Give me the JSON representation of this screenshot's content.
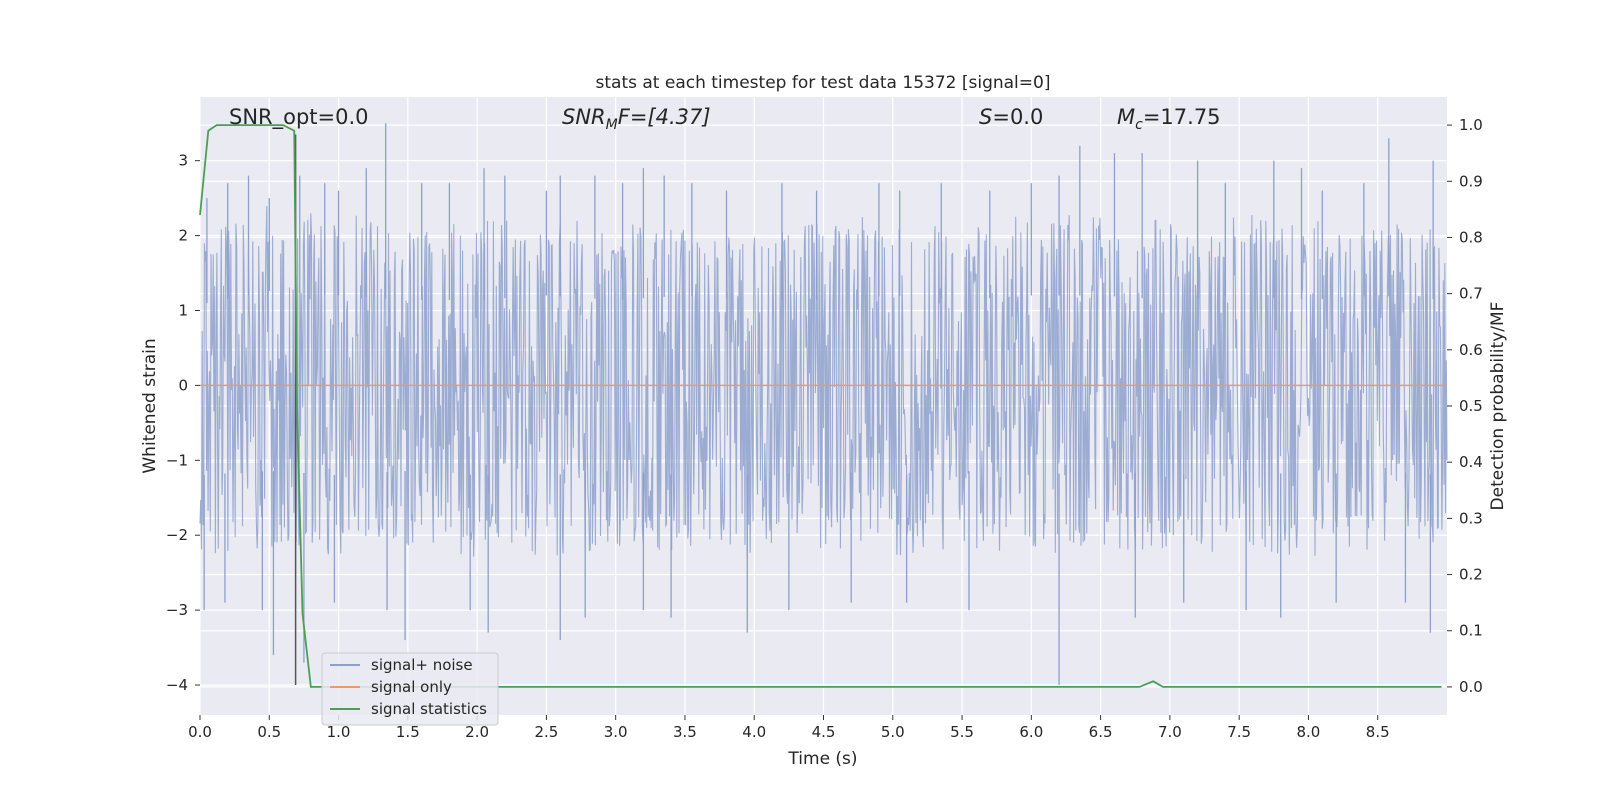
{
  "chart_data": {
    "type": "line",
    "title": "stats at each timestep for test data 15372 [signal=0]",
    "xlabel": "Time (s)",
    "ylabel": "Whitened strain",
    "y2label": "Detection probability/MF",
    "xlim": [
      0.0,
      9.0
    ],
    "ylim": [
      -4.4,
      3.85
    ],
    "y2lim": [
      -0.05,
      1.05
    ],
    "xticks": [
      0.0,
      0.5,
      1.0,
      1.5,
      2.0,
      2.5,
      3.0,
      3.5,
      4.0,
      4.5,
      5.0,
      5.5,
      6.0,
      6.5,
      7.0,
      7.5,
      8.0,
      8.5
    ],
    "yticks": [
      -4,
      -3,
      -2,
      -1,
      0,
      1,
      2,
      3
    ],
    "y2ticks": [
      0.0,
      0.1,
      0.2,
      0.3,
      0.4,
      0.5,
      0.6,
      0.7,
      0.8,
      0.9,
      1.0
    ],
    "grid": true,
    "legend_position": "lower-left",
    "annotations": {
      "snr_opt": "SNR_opt=0.0",
      "snr_mf_main": "SNR",
      "snr_mf_sub": "M",
      "snr_mf_rest": "F=[4.37]",
      "s_main": "S",
      "s_rest": "=0.0",
      "mc_main": "M",
      "mc_sub": "c",
      "mc_rest": "=17.75"
    },
    "vline_x": 0.69,
    "series": [
      {
        "name": "signal+ noise",
        "color": "#8da0cb",
        "envelope": {
          "upper": [
            [
              0.0,
              1.8
            ],
            [
              0.5,
              2.1
            ],
            [
              1.0,
              2.0
            ],
            [
              1.5,
              1.9
            ],
            [
              2.0,
              1.9
            ],
            [
              2.5,
              2.0
            ],
            [
              3.0,
              1.9
            ],
            [
              3.5,
              2.0
            ],
            [
              4.0,
              1.9
            ],
            [
              4.5,
              1.9
            ],
            [
              5.0,
              2.0
            ],
            [
              5.5,
              1.9
            ],
            [
              6.0,
              2.0
            ],
            [
              6.5,
              2.0
            ],
            [
              7.0,
              1.9
            ],
            [
              7.5,
              2.0
            ],
            [
              8.0,
              1.9
            ],
            [
              8.5,
              2.0
            ],
            [
              9.0,
              1.9
            ]
          ],
          "lower": [
            [
              0.0,
              -2.0
            ],
            [
              0.5,
              -1.9
            ],
            [
              1.0,
              -2.0
            ],
            [
              1.5,
              -1.9
            ],
            [
              2.0,
              -2.0
            ],
            [
              2.5,
              -2.0
            ],
            [
              3.0,
              -1.9
            ],
            [
              3.5,
              -2.0
            ],
            [
              4.0,
              -2.0
            ],
            [
              4.5,
              -1.9
            ],
            [
              5.0,
              -2.0
            ],
            [
              5.5,
              -1.9
            ],
            [
              6.0,
              -2.0
            ],
            [
              6.5,
              -1.9
            ],
            [
              7.0,
              -2.0
            ],
            [
              7.5,
              -1.9
            ],
            [
              8.0,
              -2.0
            ],
            [
              8.5,
              -1.9
            ],
            [
              9.0,
              -2.0
            ]
          ],
          "peaks": [
            [
              0.05,
              2.5
            ],
            [
              0.2,
              2.7
            ],
            [
              0.35,
              2.8
            ],
            [
              0.5,
              2.5
            ],
            [
              0.72,
              2.8
            ],
            [
              0.9,
              2.7
            ],
            [
              1.0,
              2.6
            ],
            [
              1.2,
              2.9
            ],
            [
              1.34,
              3.5
            ],
            [
              1.6,
              2.7
            ],
            [
              1.8,
              2.7
            ],
            [
              2.05,
              2.9
            ],
            [
              2.2,
              2.8
            ],
            [
              2.5,
              2.6
            ],
            [
              2.6,
              2.8
            ],
            [
              2.85,
              2.8
            ],
            [
              3.05,
              2.7
            ],
            [
              3.2,
              2.9
            ],
            [
              3.35,
              2.8
            ],
            [
              3.55,
              2.7
            ],
            [
              3.8,
              2.6
            ],
            [
              4.2,
              2.7
            ],
            [
              4.45,
              2.6
            ],
            [
              4.9,
              2.7
            ],
            [
              5.05,
              2.6
            ],
            [
              5.35,
              2.7
            ],
            [
              5.7,
              2.6
            ],
            [
              6.0,
              2.7
            ],
            [
              6.2,
              2.8
            ],
            [
              6.35,
              3.2
            ],
            [
              6.6,
              3.1
            ],
            [
              6.8,
              3.1
            ],
            [
              7.2,
              3.0
            ],
            [
              7.4,
              2.7
            ],
            [
              7.75,
              3.0
            ],
            [
              7.95,
              2.9
            ],
            [
              8.1,
              2.6
            ],
            [
              8.4,
              2.7
            ],
            [
              8.58,
              3.3
            ],
            [
              8.9,
              3.0
            ]
          ],
          "troughs": [
            [
              0.03,
              -3.0
            ],
            [
              0.18,
              -2.9
            ],
            [
              0.45,
              -3.0
            ],
            [
              0.53,
              -3.6
            ],
            [
              0.75,
              -3.7
            ],
            [
              0.97,
              -2.9
            ],
            [
              1.35,
              -3.0
            ],
            [
              1.48,
              -3.4
            ],
            [
              1.95,
              -3.0
            ],
            [
              2.08,
              -3.3
            ],
            [
              2.6,
              -3.4
            ],
            [
              2.78,
              -3.1
            ],
            [
              3.2,
              -3.0
            ],
            [
              3.4,
              -3.1
            ],
            [
              3.95,
              -3.3
            ],
            [
              4.25,
              -3.0
            ],
            [
              4.7,
              -2.9
            ],
            [
              5.1,
              -2.9
            ],
            [
              5.55,
              -3.0
            ],
            [
              6.2,
              -4.0
            ],
            [
              6.75,
              -3.1
            ],
            [
              7.1,
              -2.9
            ],
            [
              7.55,
              -3.0
            ],
            [
              7.8,
              -3.1
            ],
            [
              8.2,
              -2.9
            ],
            [
              8.7,
              -2.9
            ],
            [
              8.88,
              -3.3
            ]
          ]
        }
      },
      {
        "name": "signal only",
        "color": "#e39a76",
        "points": [
          [
            0.0,
            0.0
          ],
          [
            9.0,
            0.0
          ]
        ]
      },
      {
        "name": "signal statistics",
        "color": "#4c9e57",
        "axis": "right",
        "points": [
          [
            0.0,
            0.84
          ],
          [
            0.06,
            0.99
          ],
          [
            0.12,
            1.0
          ],
          [
            0.6,
            1.0
          ],
          [
            0.68,
            0.99
          ],
          [
            0.7,
            0.5
          ],
          [
            0.74,
            0.13
          ],
          [
            0.8,
            0.0
          ],
          [
            6.78,
            0.0
          ],
          [
            6.88,
            0.01
          ],
          [
            6.95,
            0.0
          ],
          [
            8.96,
            0.0
          ]
        ]
      }
    ]
  }
}
